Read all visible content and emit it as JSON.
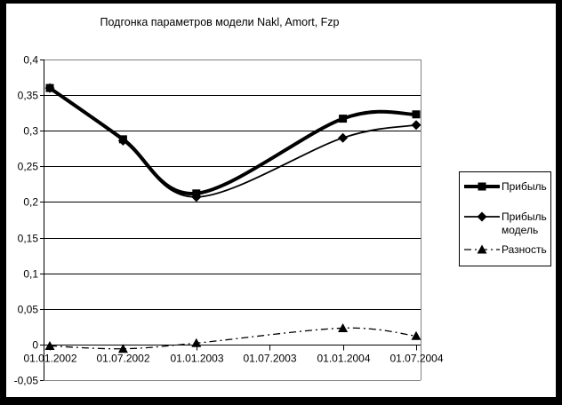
{
  "chart": {
    "title": "Подгонка параметров модели Nakl, Amort, Fzp",
    "legend": {
      "items": [
        {
          "label": "Прибыль"
        },
        {
          "label": "Прибыль модель"
        },
        {
          "label": "Разность"
        }
      ]
    }
  },
  "chart_data": {
    "type": "line",
    "title": "Подгонка параметров модели Nakl, Amort, Fzp",
    "categories": [
      "01.01.2002",
      "01.07.2002",
      "01.01.2003",
      "01.07.2003",
      "01.01.2004",
      "01.07.2004"
    ],
    "series": [
      {
        "name": "Прибыль",
        "marker": "square",
        "line_style": "solid",
        "line_width": "thick",
        "values": [
          0.36,
          0.288,
          0.212,
          null,
          0.317,
          0.323
        ]
      },
      {
        "name": "Прибыль модель",
        "marker": "diamond",
        "line_style": "solid",
        "line_width": "thin",
        "values": [
          0.36,
          0.286,
          0.207,
          null,
          0.29,
          0.308
        ]
      },
      {
        "name": "Разность",
        "marker": "triangle",
        "line_style": "dash-dot",
        "line_width": "thin",
        "values": [
          -0.002,
          -0.006,
          0.002,
          null,
          0.023,
          0.012
        ]
      }
    ],
    "ylim": [
      -0.05,
      0.4
    ],
    "ytick_step": 0.05,
    "y_tick_labels": [
      "0,4",
      "0,35",
      "0,3",
      "0,25",
      "0,2",
      "0,15",
      "0,1",
      "0,05",
      "0",
      "-0,05"
    ],
    "x_axis_cross": 0,
    "grid": "horizontal",
    "smoothed_lines": true,
    "legend_position": "right",
    "decimal_separator": ",",
    "colors": {
      "series": "#000000",
      "plot_border": "#808080",
      "gridline": "#000000",
      "background": "#ffffff",
      "frame": "#000000"
    },
    "note": "no data points plotted at 01.07.2003 for any series"
  }
}
